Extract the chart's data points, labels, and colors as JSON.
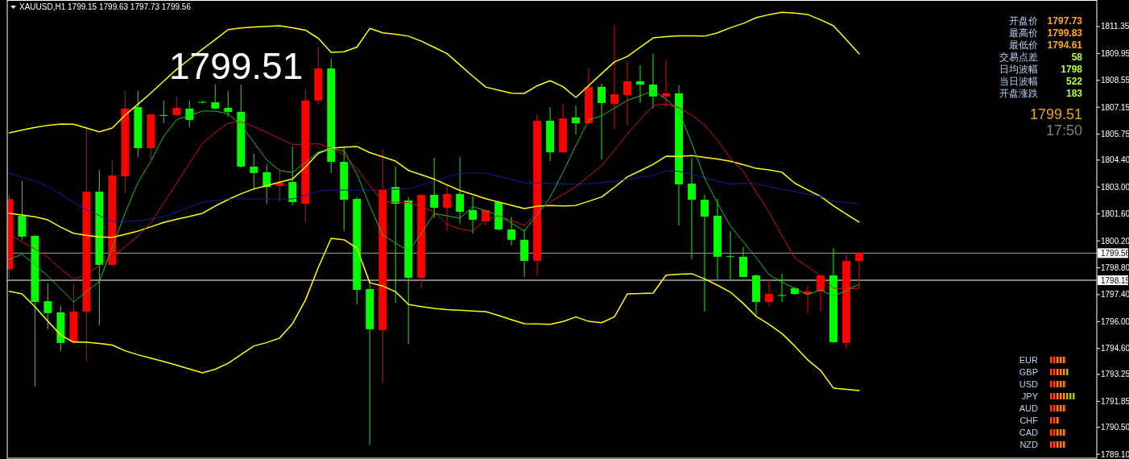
{
  "chart_data": {
    "type": "candlestick",
    "categories": [
      null,
      null,
      null,
      null,
      null,
      null,
      null,
      null,
      null,
      null,
      null,
      null,
      null,
      null,
      null,
      null,
      null,
      null,
      null,
      null,
      null,
      null,
      null,
      null,
      null,
      null,
      null,
      null,
      null,
      null,
      null,
      null,
      null,
      null,
      null,
      null,
      null,
      null,
      null,
      null,
      null,
      null,
      null,
      null,
      null,
      null,
      null,
      null,
      null,
      null,
      null,
      null,
      null,
      null,
      null,
      null,
      null,
      null,
      null,
      null,
      null,
      null,
      null,
      null,
      null,
      null,
      null
    ],
    "ohlc": [
      [
        1798.72,
        1802.6,
        1798.26,
        1802.37
      ],
      [
        1801.5,
        1803.31,
        1800.25,
        1800.42
      ],
      [
        1800.46,
        1800.5,
        1792.62,
        1797.02
      ],
      [
        1797.06,
        1797.99,
        1795.6,
        1796.44
      ],
      [
        1796.48,
        1796.81,
        1794.47,
        1794.89
      ],
      [
        1794.93,
        1797.94,
        1794.84,
        1796.52
      ],
      [
        1796.52,
        1806.03,
        1793.92,
        1802.76
      ],
      [
        1802.76,
        1803.89,
        1795.81,
        1798.95
      ],
      [
        1798.95,
        1804.4,
        1798.9,
        1803.6
      ],
      [
        1803.56,
        1808.0,
        1802.68,
        1807.08
      ],
      [
        1807.16,
        1808.0,
        1804.56,
        1805.02
      ],
      [
        1805.02,
        1806.8,
        1804.44,
        1806.78
      ],
      [
        1806.74,
        1807.5,
        1806.32,
        1806.7
      ],
      [
        1806.74,
        1807.71,
        1806.66,
        1807.12
      ],
      [
        1807.08,
        1807.5,
        1806.11,
        1806.49
      ],
      [
        1807.43,
        1807.5,
        1807.35,
        1807.4
      ],
      [
        1807.41,
        1808.33,
        1807.04,
        1807.08
      ],
      [
        1807.12,
        1808.0,
        1806.66,
        1806.91
      ],
      [
        1806.91,
        1808.33,
        1804.02,
        1804.06
      ],
      [
        1804.06,
        1804.73,
        1802.85,
        1803.73
      ],
      [
        1803.77,
        1804.19,
        1802.13,
        1803.0
      ],
      [
        1803.06,
        1803.85,
        1802.26,
        1803.22
      ],
      [
        1803.26,
        1805.11,
        1802.05,
        1802.22
      ],
      [
        1802.13,
        1808.08,
        1801.17,
        1807.5
      ],
      [
        1807.5,
        1810.3,
        1807.29,
        1809.17
      ],
      [
        1809.17,
        1809.67,
        1803.73,
        1804.31
      ],
      [
        1804.31,
        1805.11,
        1800.71,
        1802.34
      ],
      [
        1802.38,
        1802.47,
        1796.9,
        1797.65
      ],
      [
        1797.69,
        1798.11,
        1789.57,
        1795.6
      ],
      [
        1795.56,
        1804.94,
        1792.79,
        1802.85
      ],
      [
        1803.0,
        1804.06,
        1796.98,
        1802.13
      ],
      [
        1802.3,
        1802.47,
        1794.84,
        1798.28
      ],
      [
        1798.28,
        1802.6,
        1797.73,
        1802.59
      ],
      [
        1802.59,
        1804.52,
        1801.38,
        1801.92
      ],
      [
        1801.92,
        1803.14,
        1800.71,
        1802.64
      ],
      [
        1802.64,
        1804.56,
        1801.09,
        1801.71
      ],
      [
        1801.8,
        1802.51,
        1800.58,
        1801.3
      ],
      [
        1801.21,
        1801.85,
        1801.0,
        1801.8
      ],
      [
        1802.22,
        1802.3,
        1800.75,
        1800.79
      ],
      [
        1800.79,
        1801.46,
        1799.96,
        1800.25
      ],
      [
        1800.25,
        1800.79,
        1798.32,
        1799.16
      ],
      [
        1799.16,
        1806.78,
        1798.4,
        1806.45
      ],
      [
        1806.45,
        1807.16,
        1804.35,
        1804.81
      ],
      [
        1804.81,
        1807.33,
        1804.8,
        1806.57
      ],
      [
        1806.62,
        1807.24,
        1805.74,
        1806.32
      ],
      [
        1806.32,
        1809.21,
        1806.24,
        1808.21
      ],
      [
        1808.21,
        1808.38,
        1804.44,
        1807.37
      ],
      [
        1807.33,
        1811.43,
        1806.03,
        1807.83
      ],
      [
        1807.79,
        1809.55,
        1806.2,
        1808.5
      ],
      [
        1808.5,
        1809.34,
        1807.37,
        1808.33
      ],
      [
        1808.33,
        1809.93,
        1807.08,
        1807.71
      ],
      [
        1807.71,
        1809.59,
        1807.16,
        1807.87
      ],
      [
        1807.87,
        1808.29,
        1801.0,
        1803.14
      ],
      [
        1803.18,
        1804.52,
        1799.24,
        1802.34
      ],
      [
        1802.34,
        1802.6,
        1796.52,
        1801.46
      ],
      [
        1801.5,
        1802.38,
        1798.2,
        1799.37
      ],
      [
        1799.4,
        1800.71,
        1798.2,
        1799.37
      ],
      [
        1799.37,
        1799.87,
        1798.3,
        1798.32
      ],
      [
        1798.4,
        1798.45,
        1796.35,
        1797.02
      ],
      [
        1797.02,
        1798.2,
        1796.81,
        1797.44
      ],
      [
        1797.38,
        1798.49,
        1797.02,
        1797.36
      ],
      [
        1797.73,
        1797.8,
        1797.4,
        1797.44
      ],
      [
        1797.44,
        1797.86,
        1796.44,
        1797.57
      ],
      [
        1797.57,
        1798.45,
        1796.52,
        1798.4
      ],
      [
        1798.4,
        1799.83,
        1794.9,
        1794.93
      ],
      [
        1794.89,
        1799.49,
        1794.59,
        1799.16
      ],
      [
        1799.15,
        1799.63,
        1797.73,
        1799.56
      ]
    ],
    "colors": [
      "#ff0000",
      "#00ff00",
      "#00ff00",
      "#00ff00",
      "#00ff00",
      "#ff0000",
      "#ff0000",
      "#00ff00",
      "#ff0000",
      "#ff0000",
      "#00ff00",
      "#ff0000",
      "#00ff00",
      "#ff0000",
      "#00ff00",
      "#00ff00",
      "#00ff00",
      "#00ff00",
      "#00ff00",
      "#00ff00",
      "#00ff00",
      "#ff0000",
      "#00ff00",
      "#ff0000",
      "#ff0000",
      "#00ff00",
      "#00ff00",
      "#00ff00",
      "#00ff00",
      "#ff0000",
      "#00ff00",
      "#00ff00",
      "#ff0000",
      "#00ff00",
      "#ff0000",
      "#00ff00",
      "#00ff00",
      "#ff0000",
      "#00ff00",
      "#00ff00",
      "#00ff00",
      "#ff0000",
      "#00ff00",
      "#ff0000",
      "#00ff00",
      "#ff0000",
      "#00ff00",
      "#ff0000",
      "#ff0000",
      "#00ff00",
      "#00ff00",
      "#ff0000",
      "#00ff00",
      "#00ff00",
      "#00ff00",
      "#00ff00",
      "#00ff00",
      "#00ff00",
      "#00ff00",
      "#ff0000",
      "#00ff00",
      "#00ff00",
      "#ff0000",
      "#ff0000",
      "#00ff00",
      "#ff0000",
      "#ff0000"
    ],
    "series": [
      {
        "type": "line",
        "color": "#ffff00",
        "values": [
          1805.82,
          1805.96,
          1806.1,
          1806.21,
          1806.28,
          1806.27,
          1806.07,
          1805.87,
          1806.07,
          1806.74,
          1807.31,
          1807.89,
          1808.51,
          1809.12,
          1809.65,
          1810.17,
          1810.67,
          1811.19,
          1811.27,
          1811.33,
          1811.36,
          1811.39,
          1811.28,
          1811.16,
          1810.74,
          1810.01,
          1810.04,
          1810.28,
          1811.25,
          1811.02,
          1810.95,
          1810.85,
          1810.59,
          1810.27,
          1809.94,
          1809.35,
          1808.76,
          1808.2,
          1808.04,
          1807.88,
          1807.87,
          1808.27,
          1808.53,
          1808.22,
          1807.66,
          1808.28,
          1808.9,
          1809.51,
          1809.79,
          1810.27,
          1810.76,
          1810.82,
          1810.87,
          1810.87,
          1810.85,
          1811.02,
          1811.29,
          1811.51,
          1811.81,
          1811.97,
          1812.09,
          1812.05,
          1811.98,
          1811.7,
          1811.39,
          1810.67,
          1809.92
        ]
      },
      {
        "type": "line",
        "color": "#ffff00",
        "values": [
          1801.63,
          1801.54,
          1801.45,
          1801.29,
          1800.91,
          1800.59,
          1800.49,
          1800.4,
          1800.38,
          1800.54,
          1800.71,
          1800.93,
          1801.16,
          1801.32,
          1801.47,
          1801.63,
          1802.01,
          1802.35,
          1802.65,
          1802.9,
          1803.07,
          1803.25,
          1803.42,
          1804.05,
          1804.76,
          1805.02,
          1805.07,
          1805.11,
          1804.79,
          1804.57,
          1804.35,
          1803.86,
          1803.64,
          1803.41,
          1803.11,
          1802.82,
          1802.61,
          1802.39,
          1802.22,
          1802.05,
          1801.88,
          1802.0,
          1802.04,
          1802.02,
          1802.04,
          1802.26,
          1802.48,
          1802.99,
          1803.53,
          1803.85,
          1804.18,
          1804.6,
          1804.59,
          1804.63,
          1804.54,
          1804.46,
          1804.34,
          1804.16,
          1803.97,
          1803.89,
          1803.77,
          1803.2,
          1802.85,
          1802.51,
          1802.02,
          1801.59,
          1801.17
        ]
      },
      {
        "type": "line",
        "color": "#ffff00",
        "values": [
          1797.57,
          1797.44,
          1796.77,
          1796.02,
          1795.29,
          1794.93,
          1794.92,
          1794.86,
          1794.78,
          1794.48,
          1794.27,
          1794.1,
          1793.92,
          1793.73,
          1793.53,
          1793.33,
          1793.52,
          1793.83,
          1794.28,
          1794.73,
          1794.91,
          1795.14,
          1795.89,
          1797.12,
          1798.81,
          1800.33,
          1800.26,
          1799.82,
          1798.02,
          1797.85,
          1797.55,
          1796.89,
          1796.78,
          1796.68,
          1796.62,
          1796.59,
          1796.55,
          1796.52,
          1796.32,
          1796.1,
          1795.89,
          1795.88,
          1795.86,
          1796.0,
          1796.24,
          1796.01,
          1795.94,
          1796.25,
          1797.44,
          1797.46,
          1797.48,
          1798.41,
          1798.46,
          1798.49,
          1798.22,
          1797.89,
          1797.53,
          1796.94,
          1796.27,
          1795.85,
          1795.38,
          1794.72,
          1794.01,
          1793.46,
          1792.54,
          1792.47,
          1792.41
        ]
      },
      {
        "type": "line",
        "color": "#1a1aa8",
        "values": [
          1803.72,
          1803.51,
          1803.3,
          1803.04,
          1802.62,
          1802.21,
          1801.82,
          1801.51,
          1801.21,
          1801.21,
          1801.24,
          1801.35,
          1801.45,
          1801.7,
          1801.96,
          1802.22,
          1802.29,
          1802.38,
          1802.38,
          1802.38,
          1802.38,
          1802.38,
          1802.38,
          1802.57,
          1802.78,
          1802.84,
          1802.84,
          1802.84,
          1802.84,
          1802.86,
          1802.88,
          1802.91,
          1803.11,
          1803.31,
          1803.52,
          1803.72,
          1803.72,
          1803.72,
          1803.56,
          1803.39,
          1803.22,
          1803.2,
          1803.18,
          1803.16,
          1803.14,
          1803.18,
          1803.22,
          1803.3,
          1803.41,
          1803.5,
          1803.6,
          1803.84,
          1803.82,
          1803.66,
          1803.49,
          1803.29,
          1803.15,
          1803.2,
          1803.17,
          1803.02,
          1802.88,
          1802.76,
          1802.63,
          1802.51,
          1802.26,
          1802.19,
          1802.13
        ]
      },
      {
        "type": "line",
        "color": "#d01010",
        "values": [
          1800.54,
          1800.16,
          1799.78,
          1799.35,
          1798.73,
          1798.22,
          1798.45,
          1798.91,
          1799.36,
          1799.91,
          1800.45,
          1801.15,
          1802.18,
          1803.2,
          1804.24,
          1805.27,
          1805.85,
          1806.33,
          1806.39,
          1806.14,
          1805.83,
          1805.52,
          1805.21,
          1805.22,
          1805.26,
          1805.02,
          1804.66,
          1803.97,
          1803.06,
          1802.22,
          1802.22,
          1802.19,
          1801.96,
          1801.71,
          1801.05,
          1800.82,
          1800.7,
          1801.32,
          1801.5,
          1801.25,
          1801.0,
          1801.67,
          1802.22,
          1802.62,
          1803.03,
          1803.57,
          1804.11,
          1804.92,
          1805.77,
          1806.51,
          1807.24,
          1807.32,
          1807.13,
          1806.74,
          1806.22,
          1805.43,
          1804.48,
          1803.8,
          1802.73,
          1801.68,
          1800.46,
          1799.3,
          1798.85,
          1798.4,
          1797.74,
          1797.69,
          1797.73
        ]
      },
      {
        "type": "line",
        "color": "#20c020",
        "values": [
          1799.24,
          1799.5,
          1798.95,
          1798.37,
          1797.7,
          1797.02,
          1797.55,
          1798.08,
          1799.84,
          1801.64,
          1803.24,
          1804.34,
          1805.65,
          1806.5,
          1806.73,
          1806.95,
          1806.95,
          1806.81,
          1806.21,
          1805.32,
          1804.4,
          1803.86,
          1803.75,
          1804.3,
          1804.82,
          1805.0,
          1804.88,
          1803.67,
          1802.02,
          1800.51,
          1800.08,
          1799.67,
          1800.58,
          1801.62,
          1801.5,
          1801.38,
          1801.98,
          1801.76,
          1801.53,
          1801.12,
          1800.71,
          1801.57,
          1802.46,
          1803.78,
          1805.16,
          1806.49,
          1806.71,
          1807.11,
          1807.51,
          1807.75,
          1808.0,
          1807.57,
          1806.95,
          1805.27,
          1803.45,
          1802.15,
          1800.97,
          1800.15,
          1799.33,
          1798.44,
          1798.05,
          1797.72,
          1797.39,
          1797.65,
          1797.31,
          1797.62,
          1797.94
        ]
      }
    ],
    "ylim": [
      1788.85,
      1812.73
    ],
    "yticks": [
      {
        "value": 1811.35,
        "label": "1811.35"
      },
      {
        "value": 1809.95,
        "label": "1809.95"
      },
      {
        "value": 1808.55,
        "label": "1808.55"
      },
      {
        "value": 1807.15,
        "label": "1807.15"
      },
      {
        "value": 1805.75,
        "label": "1805.75"
      },
      {
        "value": 1804.4,
        "label": "1804.40"
      },
      {
        "value": 1803.0,
        "label": "1803.00"
      },
      {
        "value": 1801.6,
        "label": "1801.60"
      },
      {
        "value": 1800.2,
        "label": "1800.20"
      },
      {
        "value": 1798.8,
        "label": "1798.80"
      },
      {
        "value": 1797.4,
        "label": "1797.40"
      },
      {
        "value": 1796.0,
        "label": "1796.00"
      },
      {
        "value": 1794.6,
        "label": "1794.60"
      },
      {
        "value": 1793.25,
        "label": "1793.25"
      },
      {
        "value": 1791.85,
        "label": "1791.85"
      },
      {
        "value": 1790.5,
        "label": "1790.50"
      },
      {
        "value": 1789.1,
        "label": "1789.10"
      }
    ],
    "tick_labels": "y",
    "grid": false,
    "ref_lines": [
      {
        "axis": "y",
        "value": 1799.56,
        "label": "1799.56",
        "color": "#a0a0a0"
      },
      {
        "axis": "y",
        "value": 1798.15,
        "label": "1798.15",
        "color": "#ffffff"
      }
    ],
    "annotations": [
      "XAUUSD,H1  1799.15 1799.63 1797.73 1799.56",
      "1799.51",
      "开盘价",
      "最高价",
      "最低价",
      "交易点差",
      "日均波幅",
      "当日波幅",
      "开盘涨跌",
      "1797.73",
      "1799.83",
      "1794.61",
      "58",
      "1798",
      "522",
      "183",
      "1799.51",
      "17:50",
      "EUR",
      "GBP",
      "USD",
      "JPY",
      "AUD",
      "CHF",
      "CAD",
      "NZD"
    ]
  }
}
